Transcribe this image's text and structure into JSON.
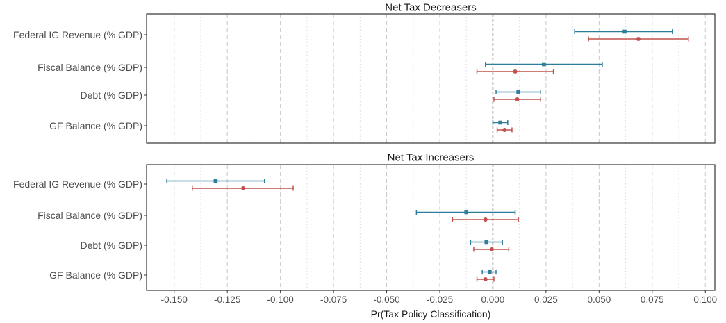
{
  "chart_data": {
    "type": "scatter",
    "xlabel": "Pr(Tax Policy Classification)",
    "x_ticks": [
      "-0.150",
      "-0.125",
      "-0.100",
      "-0.075",
      "-0.050",
      "-0.025",
      "0.000",
      "0.025",
      "0.050",
      "0.075",
      "0.100"
    ],
    "xlim": [
      -0.163,
      0.1045
    ],
    "grid": true,
    "reference_line_x": 0,
    "colors": {
      "series_a": "#2e7d9a",
      "series_b": "#c0504d"
    },
    "categories": [
      "Federal IG Revenue (% GDP)",
      "Fiscal Balance (% GDP)",
      "Debt (% GDP)",
      "GF Balance (% GDP)"
    ],
    "panels": [
      {
        "title": "Net Tax Decreasers",
        "series": [
          {
            "marker": "square",
            "color": "#2e7d9a",
            "points": [
              {
                "category": "Federal IG Revenue (% GDP)",
                "estimate": 0.062,
                "low": 0.0385,
                "high": 0.0845
              },
              {
                "category": "Fiscal Balance (% GDP)",
                "estimate": 0.024,
                "low": -0.0035,
                "high": 0.0515
              },
              {
                "category": "Debt (% GDP)",
                "estimate": 0.012,
                "low": 0.0015,
                "high": 0.0225
              },
              {
                "category": "GF Balance (% GDP)",
                "estimate": 0.0035,
                "low": 0.0,
                "high": 0.007
              }
            ]
          },
          {
            "marker": "circle",
            "color": "#c0504d",
            "points": [
              {
                "category": "Federal IG Revenue (% GDP)",
                "estimate": 0.0685,
                "low": 0.045,
                "high": 0.092
              },
              {
                "category": "Fiscal Balance (% GDP)",
                "estimate": 0.0105,
                "low": -0.0075,
                "high": 0.0285
              },
              {
                "category": "Debt (% GDP)",
                "estimate": 0.0115,
                "low": 0.0005,
                "high": 0.0225
              },
              {
                "category": "GF Balance (% GDP)",
                "estimate": 0.0055,
                "low": 0.002,
                "high": 0.009
              }
            ]
          }
        ]
      },
      {
        "title": "Net Tax Increasers",
        "series": [
          {
            "marker": "square",
            "color": "#2e7d9a",
            "points": [
              {
                "category": "Federal IG Revenue (% GDP)",
                "estimate": -0.1305,
                "low": -0.1535,
                "high": -0.1075
              },
              {
                "category": "Fiscal Balance (% GDP)",
                "estimate": -0.0125,
                "low": -0.036,
                "high": 0.0105
              },
              {
                "category": "Debt (% GDP)",
                "estimate": -0.003,
                "low": -0.0105,
                "high": 0.0045
              },
              {
                "category": "GF Balance (% GDP)",
                "estimate": -0.0015,
                "low": -0.005,
                "high": 0.0015
              }
            ]
          },
          {
            "marker": "circle",
            "color": "#c0504d",
            "points": [
              {
                "category": "Federal IG Revenue (% GDP)",
                "estimate": -0.1175,
                "low": -0.1415,
                "high": -0.094
              },
              {
                "category": "Fiscal Balance (% GDP)",
                "estimate": -0.0035,
                "low": -0.019,
                "high": 0.012
              },
              {
                "category": "Debt (% GDP)",
                "estimate": -0.0005,
                "low": -0.009,
                "high": 0.0075
              },
              {
                "category": "GF Balance (% GDP)",
                "estimate": -0.0035,
                "low": -0.0075,
                "high": 0.0005
              }
            ]
          }
        ]
      }
    ]
  }
}
